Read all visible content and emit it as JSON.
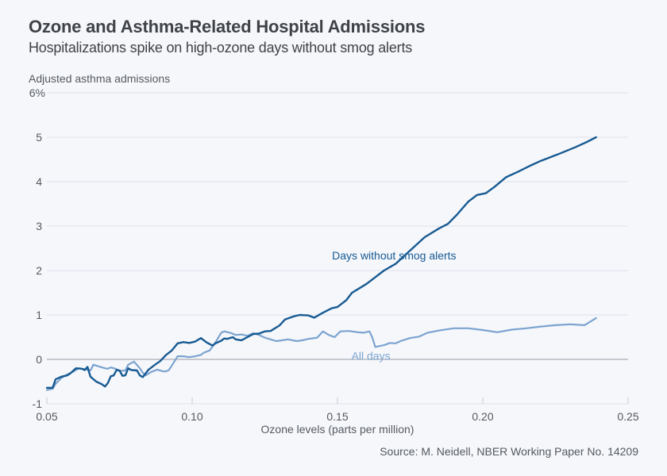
{
  "chart_data": {
    "type": "line",
    "title": "Ozone and Asthma-Related Hospital Admissions",
    "subtitle": "Hospitalizations spike on high-ozone days without smog alerts",
    "xlabel": "Ozone levels (parts per million)",
    "ylabel": "Adjusted asthma admissions",
    "source": "Source: M. Neidell, NBER Working Paper No. 14209",
    "xlim": [
      0.05,
      0.25
    ],
    "ylim": [
      -1,
      6
    ],
    "x_ticks": [
      {
        "value": 0.05,
        "label": "0.05"
      },
      {
        "value": 0.1,
        "label": "0.10"
      },
      {
        "value": 0.15,
        "label": "0.15"
      },
      {
        "value": 0.2,
        "label": "0.20"
      },
      {
        "value": 0.25,
        "label": "0.25"
      }
    ],
    "y_ticks": [
      {
        "value": -1,
        "label": "-1"
      },
      {
        "value": 0,
        "label": "0"
      },
      {
        "value": 1,
        "label": "1"
      },
      {
        "value": 2,
        "label": "2"
      },
      {
        "value": 3,
        "label": "3"
      },
      {
        "value": 4,
        "label": "4"
      },
      {
        "value": 5,
        "label": "5"
      },
      {
        "value": 6,
        "label": "6%"
      }
    ],
    "grid": true,
    "legend": "inline-labels",
    "series": [
      {
        "name": "Days without smog alerts",
        "color": "#175a92",
        "label_anchor": {
          "x": 0.1695,
          "y": 2.25
        },
        "points": [
          [
            0.05,
            -0.64
          ],
          [
            0.052,
            -0.64
          ],
          [
            0.053,
            -0.45
          ],
          [
            0.055,
            -0.39
          ],
          [
            0.057,
            -0.36
          ],
          [
            0.058,
            -0.32
          ],
          [
            0.06,
            -0.2
          ],
          [
            0.062,
            -0.21
          ],
          [
            0.063,
            -0.24
          ],
          [
            0.064,
            -0.17
          ],
          [
            0.065,
            -0.39
          ],
          [
            0.067,
            -0.5
          ],
          [
            0.069,
            -0.56
          ],
          [
            0.07,
            -0.61
          ],
          [
            0.071,
            -0.53
          ],
          [
            0.072,
            -0.38
          ],
          [
            0.073,
            -0.36
          ],
          [
            0.074,
            -0.24
          ],
          [
            0.075,
            -0.25
          ],
          [
            0.076,
            -0.37
          ],
          [
            0.077,
            -0.36
          ],
          [
            0.078,
            -0.2
          ],
          [
            0.079,
            -0.24
          ],
          [
            0.081,
            -0.25
          ],
          [
            0.082,
            -0.36
          ],
          [
            0.083,
            -0.4
          ],
          [
            0.085,
            -0.23
          ],
          [
            0.087,
            -0.13
          ],
          [
            0.089,
            -0.04
          ],
          [
            0.091,
            0.1
          ],
          [
            0.093,
            0.2
          ],
          [
            0.095,
            0.36
          ],
          [
            0.097,
            0.39
          ],
          [
            0.099,
            0.37
          ],
          [
            0.101,
            0.4
          ],
          [
            0.103,
            0.48
          ],
          [
            0.105,
            0.38
          ],
          [
            0.107,
            0.31
          ],
          [
            0.108,
            0.36
          ],
          [
            0.11,
            0.42
          ],
          [
            0.111,
            0.47
          ],
          [
            0.112,
            0.46
          ],
          [
            0.114,
            0.5
          ],
          [
            0.115,
            0.45
          ],
          [
            0.117,
            0.43
          ],
          [
            0.119,
            0.5
          ],
          [
            0.121,
            0.57
          ],
          [
            0.123,
            0.58
          ],
          [
            0.125,
            0.63
          ],
          [
            0.127,
            0.64
          ],
          [
            0.13,
            0.76
          ],
          [
            0.132,
            0.9
          ],
          [
            0.135,
            0.97
          ],
          [
            0.137,
            1.0
          ],
          [
            0.14,
            0.99
          ],
          [
            0.142,
            0.94
          ],
          [
            0.145,
            1.05
          ],
          [
            0.148,
            1.15
          ],
          [
            0.15,
            1.18
          ],
          [
            0.153,
            1.33
          ],
          [
            0.155,
            1.5
          ],
          [
            0.158,
            1.62
          ],
          [
            0.16,
            1.7
          ],
          [
            0.163,
            1.85
          ],
          [
            0.166,
            2.0
          ],
          [
            0.17,
            2.15
          ],
          [
            0.175,
            2.45
          ],
          [
            0.18,
            2.75
          ],
          [
            0.185,
            2.95
          ],
          [
            0.188,
            3.05
          ],
          [
            0.191,
            3.25
          ],
          [
            0.195,
            3.55
          ],
          [
            0.198,
            3.7
          ],
          [
            0.201,
            3.74
          ],
          [
            0.204,
            3.88
          ],
          [
            0.208,
            4.1
          ],
          [
            0.212,
            4.22
          ],
          [
            0.216,
            4.35
          ],
          [
            0.22,
            4.47
          ],
          [
            0.226,
            4.62
          ],
          [
            0.232,
            4.78
          ],
          [
            0.236,
            4.9
          ],
          [
            0.239,
            5.0
          ]
        ]
      },
      {
        "name": "All days",
        "color": "#7ca3cf",
        "label_anchor": {
          "x": 0.1615,
          "y": -0.01
        },
        "points": [
          [
            0.05,
            -0.69
          ],
          [
            0.052,
            -0.66
          ],
          [
            0.053,
            -0.55
          ],
          [
            0.055,
            -0.42
          ],
          [
            0.057,
            -0.34
          ],
          [
            0.059,
            -0.28
          ],
          [
            0.061,
            -0.2
          ],
          [
            0.063,
            -0.22
          ],
          [
            0.065,
            -0.25
          ],
          [
            0.066,
            -0.12
          ],
          [
            0.068,
            -0.16
          ],
          [
            0.07,
            -0.2
          ],
          [
            0.071,
            -0.21
          ],
          [
            0.072,
            -0.18
          ],
          [
            0.074,
            -0.22
          ],
          [
            0.075,
            -0.26
          ],
          [
            0.077,
            -0.25
          ],
          [
            0.078,
            -0.12
          ],
          [
            0.08,
            -0.05
          ],
          [
            0.082,
            -0.2
          ],
          [
            0.083,
            -0.3
          ],
          [
            0.084,
            -0.36
          ],
          [
            0.086,
            -0.28
          ],
          [
            0.088,
            -0.23
          ],
          [
            0.09,
            -0.27
          ],
          [
            0.091,
            -0.27
          ],
          [
            0.092,
            -0.24
          ],
          [
            0.093,
            -0.14
          ],
          [
            0.095,
            0.07
          ],
          [
            0.097,
            0.07
          ],
          [
            0.099,
            0.05
          ],
          [
            0.101,
            0.07
          ],
          [
            0.103,
            0.1
          ],
          [
            0.104,
            0.15
          ],
          [
            0.106,
            0.2
          ],
          [
            0.108,
            0.38
          ],
          [
            0.11,
            0.6
          ],
          [
            0.111,
            0.63
          ],
          [
            0.113,
            0.6
          ],
          [
            0.115,
            0.55
          ],
          [
            0.117,
            0.56
          ],
          [
            0.119,
            0.53
          ],
          [
            0.121,
            0.59
          ],
          [
            0.123,
            0.55
          ],
          [
            0.125,
            0.49
          ],
          [
            0.127,
            0.45
          ],
          [
            0.129,
            0.41
          ],
          [
            0.131,
            0.43
          ],
          [
            0.133,
            0.45
          ],
          [
            0.136,
            0.41
          ],
          [
            0.138,
            0.43
          ],
          [
            0.14,
            0.46
          ],
          [
            0.143,
            0.49
          ],
          [
            0.145,
            0.63
          ],
          [
            0.147,
            0.55
          ],
          [
            0.149,
            0.5
          ],
          [
            0.151,
            0.63
          ],
          [
            0.154,
            0.64
          ],
          [
            0.157,
            0.61
          ],
          [
            0.159,
            0.6
          ],
          [
            0.161,
            0.63
          ],
          [
            0.162,
            0.49
          ],
          [
            0.163,
            0.28
          ],
          [
            0.166,
            0.32
          ],
          [
            0.168,
            0.37
          ],
          [
            0.17,
            0.36
          ],
          [
            0.172,
            0.42
          ],
          [
            0.175,
            0.48
          ],
          [
            0.178,
            0.51
          ],
          [
            0.181,
            0.6
          ],
          [
            0.185,
            0.65
          ],
          [
            0.19,
            0.7
          ],
          [
            0.195,
            0.7
          ],
          [
            0.2,
            0.66
          ],
          [
            0.205,
            0.61
          ],
          [
            0.21,
            0.67
          ],
          [
            0.215,
            0.7
          ],
          [
            0.22,
            0.74
          ],
          [
            0.225,
            0.77
          ],
          [
            0.23,
            0.79
          ],
          [
            0.235,
            0.77
          ],
          [
            0.239,
            0.93
          ]
        ]
      }
    ]
  }
}
